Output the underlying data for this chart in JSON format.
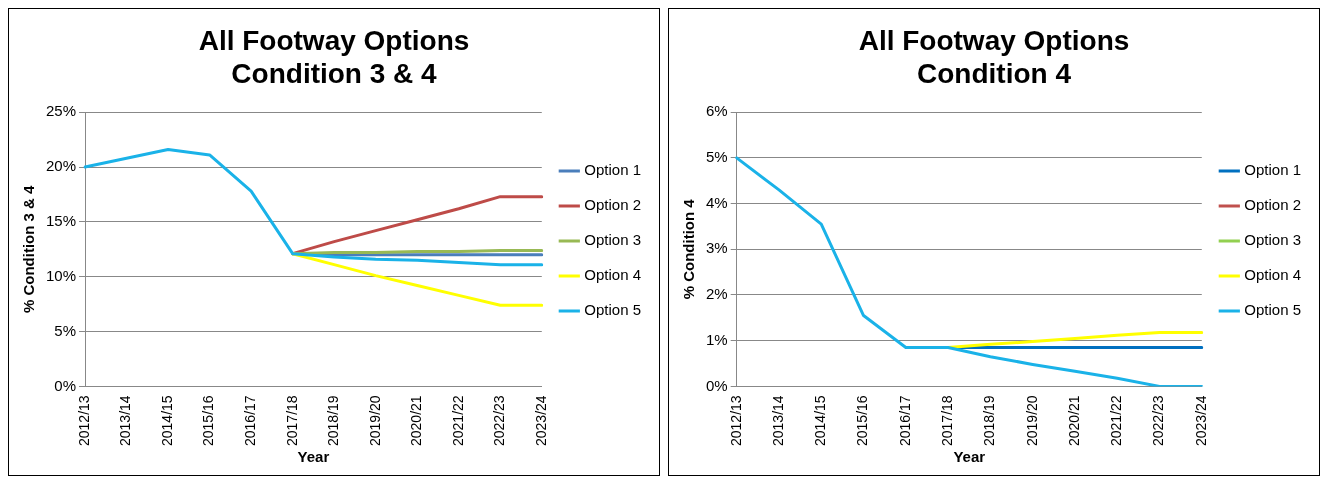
{
  "chart_data": [
    {
      "type": "line",
      "title": "All Footway Options\nCondition 3 & 4",
      "xlabel": "Year",
      "ylabel": "% Condition 3 & 4",
      "categories": [
        "2012/13",
        "2013/14",
        "2014/15",
        "2015/16",
        "2016/17",
        "2017/18",
        "2018/19",
        "2019/20",
        "2020/21",
        "2021/22",
        "2022/23",
        "2023/24"
      ],
      "series": [
        {
          "name": "Option 1",
          "color": "#4a7ebb",
          "values": [
            null,
            null,
            null,
            null,
            null,
            12.1,
            12.0,
            12.0,
            12.0,
            12.0,
            12.0,
            12.0
          ]
        },
        {
          "name": "Option 2",
          "color": "#be4b48",
          "values": [
            null,
            null,
            null,
            null,
            null,
            12.1,
            13.2,
            14.2,
            15.2,
            16.2,
            17.3,
            17.3
          ]
        },
        {
          "name": "Option 3",
          "color": "#98b954",
          "values": [
            null,
            null,
            null,
            null,
            null,
            12.1,
            12.2,
            12.2,
            12.3,
            12.3,
            12.4,
            12.4
          ]
        },
        {
          "name": "Option 4",
          "color": "#ffff00",
          "values": [
            null,
            null,
            null,
            null,
            null,
            12.1,
            11.1,
            10.1,
            9.2,
            8.3,
            7.4,
            7.4
          ]
        },
        {
          "name": "Option 5",
          "color": "#1ab2e8",
          "values": [
            20,
            20.8,
            21.6,
            21.1,
            17.8,
            12.1,
            11.8,
            11.6,
            11.5,
            11.3,
            11.1,
            11.1
          ]
        }
      ],
      "ylim": [
        0,
        25
      ],
      "yticks": [
        {
          "value": 0,
          "label": "0%"
        },
        {
          "value": 5,
          "label": "5%"
        },
        {
          "value": 10,
          "label": "10%"
        },
        {
          "value": 15,
          "label": "15%"
        },
        {
          "value": 20,
          "label": "20%"
        },
        {
          "value": 25,
          "label": "25%"
        }
      ],
      "grid": "y",
      "legend": "right"
    },
    {
      "type": "line",
      "title": "All Footway Options\nCondition 4",
      "xlabel": "Year",
      "ylabel": "% Condition 4",
      "categories": [
        "2012/13",
        "2013/14",
        "2014/15",
        "2015/16",
        "2016/17",
        "2017/18",
        "2018/19",
        "2019/20",
        "2020/21",
        "2021/22",
        "2022/23",
        "2023/24"
      ],
      "series": [
        {
          "name": "Option 1",
          "color": "#0070c0",
          "values": [
            null,
            null,
            null,
            null,
            null,
            0.85,
            0.85,
            0.85,
            0.85,
            0.85,
            0.85,
            0.85
          ]
        },
        {
          "name": "Option 2",
          "color": "#c0504d",
          "values": [
            null,
            null,
            null,
            null,
            null,
            null,
            null,
            null,
            null,
            null,
            null,
            null
          ]
        },
        {
          "name": "Option 3",
          "color": "#92d050",
          "values": [
            null,
            null,
            null,
            null,
            null,
            null,
            null,
            null,
            null,
            null,
            null,
            null
          ]
        },
        {
          "name": "Option 4",
          "color": "#ffff00",
          "values": [
            null,
            null,
            null,
            null,
            null,
            0.85,
            0.92,
            0.98,
            1.05,
            1.12,
            1.18,
            1.18
          ]
        },
        {
          "name": "Option 5",
          "color": "#1ab2e8",
          "values": [
            5.0,
            4.3,
            3.55,
            1.55,
            0.85,
            0.85,
            0.65,
            0.48,
            0.33,
            0.18,
            0,
            0
          ]
        }
      ],
      "ylim": [
        0,
        6
      ],
      "yticks": [
        {
          "value": 0,
          "label": "0%"
        },
        {
          "value": 1,
          "label": "1%"
        },
        {
          "value": 2,
          "label": "2%"
        },
        {
          "value": 3,
          "label": "3%"
        },
        {
          "value": 4,
          "label": "4%"
        },
        {
          "value": 5,
          "label": "5%"
        },
        {
          "value": 6,
          "label": "6%"
        }
      ],
      "grid": "y",
      "legend": "right"
    }
  ]
}
